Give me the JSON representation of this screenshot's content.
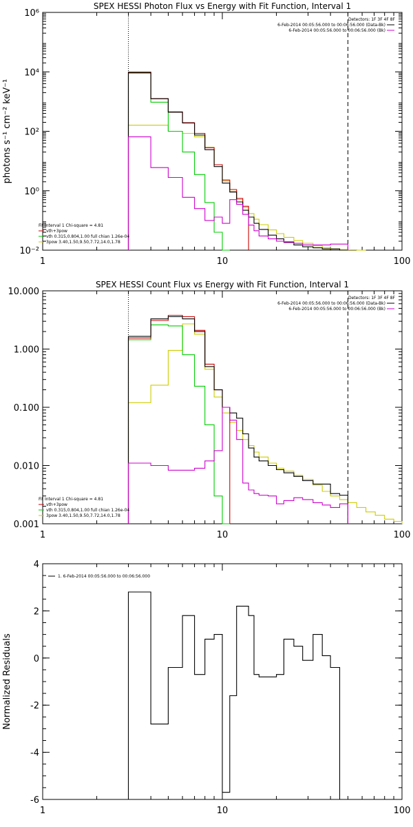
{
  "chart_data": [
    {
      "type": "line",
      "title": "SPEX HESSI Photon Flux vs Energy with Fit Function, Interval 1",
      "ylabel": "photons s⁻¹ cm⁻² keV⁻¹",
      "xscale": "log",
      "yscale": "log",
      "xlim": [
        1,
        100
      ],
      "ylim": [
        0.01,
        1000000
      ],
      "xticks": [
        1,
        10,
        100
      ],
      "xtick_labels": [
        "1",
        "10",
        "100"
      ],
      "yticks": [
        0.01,
        1,
        100,
        10000,
        1000000
      ],
      "ytick_labels": [
        "10⁻²",
        "10⁰",
        "10²",
        "10⁴",
        "10⁶"
      ],
      "vlines": [
        3,
        50
      ],
      "annotations_right": [
        "Detectors: 1F 3F 4F 8F",
        "6-Feb-2014 00:05:56.000 to 00:06:56.000 (Data-Bk)",
        "6-Feb-2014 00:05:56.000 to 00:06:56.000 (Bk)"
      ],
      "annotations_left": [
        "Fit Interval 1    Chi-square = 4.81",
        "vth+3pow",
        "vth 0.315,0.804,1.00  full chian 1.26e-04",
        "3pow 3.40,1.50,9.50,7.72,14.0,1.78"
      ],
      "edges": [
        3,
        4,
        5,
        6,
        7,
        8,
        9,
        10,
        11,
        12,
        13,
        14,
        15,
        16,
        18,
        20,
        22,
        25,
        28,
        32,
        36,
        40,
        45,
        50,
        56,
        63
      ],
      "series": [
        {
          "color": "#000000",
          "values": [
            9500,
            1250,
            440,
            190,
            75,
            24,
            6.5,
            1.8,
            0.9,
            0.42,
            0.22,
            0.13,
            0.08,
            0.05,
            0.032,
            0.024,
            0.019,
            0.015,
            0.013,
            0.012,
            0.011,
            0.011
          ]
        },
        {
          "color": "#cc0000",
          "values": [
            9800,
            1250,
            450,
            195,
            85,
            28,
            7.5,
            2.3,
            1.1,
            0.55,
            0.3
          ]
        },
        {
          "color": "#00cc00",
          "values": [
            9000,
            950,
            100,
            20,
            3.5,
            0.4,
            0.04,
            0.01
          ]
        },
        {
          "color": "#cccc00",
          "values": [
            160,
            160,
            100,
            85,
            65,
            29,
            7.5,
            2.1,
            0.95,
            0.5,
            0.27,
            0.17,
            0.11,
            0.072,
            0.048,
            0.036,
            0.027,
            0.021,
            0.017,
            0.014,
            0.012,
            0.011,
            0.0105,
            0.0102,
            0.01
          ]
        },
        {
          "color": "#cc00cc",
          "values": [
            65,
            6,
            2.8,
            0.6,
            0.25,
            0.1,
            0.13,
            0.08,
            0.5,
            0.35,
            0.16,
            0.07,
            0.045,
            0.03,
            0.024,
            0.02,
            0.018,
            0.017,
            0.015,
            0.015,
            0.015,
            0.016,
            0.016
          ]
        }
      ]
    },
    {
      "type": "line",
      "title": "SPEX HESSI Count Flux vs Energy with Fit Function, Interval 1",
      "ylabel": "",
      "xscale": "log",
      "yscale": "log",
      "xlim": [
        1,
        100
      ],
      "ylim": [
        0.001,
        10
      ],
      "xticks": [
        1,
        10,
        100
      ],
      "xtick_labels": [
        "1",
        "10",
        "100"
      ],
      "yticks": [
        0.001,
        0.01,
        0.1,
        1,
        10
      ],
      "ytick_labels": [
        "0.001",
        "0.010",
        "0.100",
        "1.000",
        "10.000"
      ],
      "vlines": [
        3,
        50
      ],
      "annotations_right": [
        "Detectors: 1F 3F 4F 8F",
        "6-Feb-2014 00:05:56.000 to 00:06:56.000 (Data-Bk)",
        "6-Feb-2014 00:05:56.000 to 00:06:56.000 (Bk)"
      ],
      "annotations_left": [
        "Fit Interval 1    Chi-square = 4.81",
        "vth+3pow",
        "vth 0.315,0.804,1.00  full chian 1.26e-04",
        "3pow 3.40,1.50,9.50,7.72,14.0,1.78"
      ],
      "edges": [
        3,
        4,
        5,
        6,
        7,
        8,
        9,
        10,
        11,
        12,
        13,
        14,
        15,
        16,
        18,
        20,
        22,
        25,
        28,
        32,
        36,
        40,
        45,
        50,
        56,
        63,
        71,
        80,
        90,
        100
      ],
      "series": [
        {
          "color": "#000000",
          "values": [
            1.65,
            3.3,
            3.6,
            3.3,
            2.0,
            0.5,
            0.2,
            0.1,
            0.08,
            0.065,
            0.035,
            0.02,
            0.014,
            0.012,
            0.01,
            0.0085,
            0.0075,
            0.0065,
            0.0055,
            0.0048,
            0.0048,
            0.0033,
            0.0031
          ]
        },
        {
          "color": "#cc0000",
          "values": [
            1.55,
            3.1,
            3.8,
            3.6,
            2.1,
            0.55,
            0.2,
            0.1
          ]
        },
        {
          "color": "#00cc00",
          "values": [
            1.45,
            2.6,
            2.5,
            0.8,
            0.23,
            0.05,
            0.003,
            0.001
          ]
        },
        {
          "color": "#cccc00",
          "values": [
            0.12,
            0.24,
            0.95,
            2.7,
            1.8,
            0.45,
            0.15,
            0.08,
            0.055,
            0.04,
            0.028,
            0.022,
            0.017,
            0.014,
            0.011,
            0.009,
            0.008,
            0.0068,
            0.0058,
            0.0046,
            0.0036,
            0.003,
            0.0026,
            0.0023,
            0.0019,
            0.0016,
            0.0014,
            0.0012,
            0.0011
          ]
        },
        {
          "color": "#cc00cc",
          "values": [
            0.011,
            0.01,
            0.0083,
            0.0083,
            0.009,
            0.012,
            0.018,
            0.1,
            0.06,
            0.028,
            0.005,
            0.0038,
            0.0033,
            0.0031,
            0.003,
            0.0022,
            0.0025,
            0.0028,
            0.0026,
            0.0023,
            0.0021,
            0.0019,
            0.0022
          ]
        }
      ]
    },
    {
      "type": "line",
      "title": "",
      "ylabel": "Normalized Residuals",
      "xscale": "log",
      "yscale": "linear",
      "xlim": [
        1,
        100
      ],
      "ylim": [
        -6,
        4
      ],
      "xticks": [
        1,
        10,
        100
      ],
      "xtick_labels": [
        "1",
        "10",
        "100"
      ],
      "yticks": [
        -6,
        -4,
        -2,
        0,
        2,
        4
      ],
      "ytick_labels": [
        "-6",
        "-4",
        "-2",
        "0",
        "2",
        "4"
      ],
      "annotations_left": [
        "1.  6-Feb-2014 00:05:56.000 to 00:06:56.000"
      ],
      "edges": [
        3,
        4,
        5,
        6,
        7,
        8,
        9,
        10,
        11,
        12,
        13,
        14,
        15,
        16,
        18,
        20,
        22,
        25,
        28,
        32,
        36,
        40,
        45,
        50
      ],
      "series": [
        {
          "color": "#000000",
          "values": [
            2.8,
            -2.8,
            -0.4,
            1.8,
            -0.7,
            0.8,
            1.0,
            -5.7,
            -1.6,
            2.2,
            2.2,
            1.8,
            -0.7,
            -0.8,
            -0.8,
            -0.7,
            0.8,
            0.5,
            -0.1,
            1.0,
            0.1,
            -0.4
          ]
        }
      ]
    }
  ]
}
